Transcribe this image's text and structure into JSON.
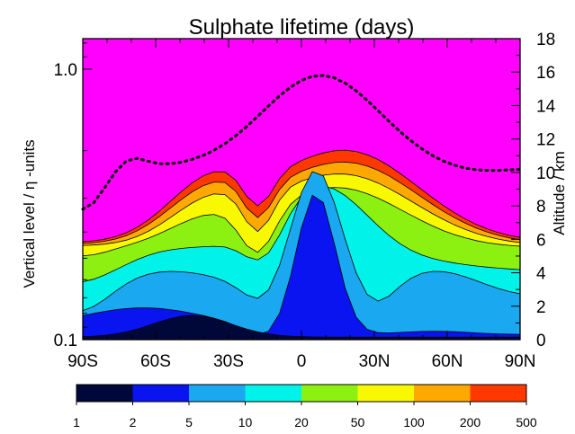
{
  "chart_data": {
    "type": "filled-contour",
    "title": "Sulphate lifetime (days)",
    "ylabel": "Vertical level / η -units",
    "y2label": "Altitude / km",
    "x_ticks": [
      "90S",
      "60S",
      "30S",
      "0",
      "30N",
      "60N",
      "90N"
    ],
    "x_values": [
      -90,
      -60,
      -30,
      0,
      30,
      60,
      90
    ],
    "xlim": [
      -90,
      90
    ],
    "y_ticks_left": [
      "0.1",
      "1.0"
    ],
    "ylim_left": [
      1.0,
      0.05
    ],
    "y_scale_left": "log",
    "y_ticks_right": [
      "0",
      "2",
      "4",
      "6",
      "8",
      "10",
      "12",
      "14",
      "16",
      "18"
    ],
    "ylim_right": [
      0,
      18
    ],
    "colorbar": {
      "levels": [
        "1",
        "2",
        "5",
        "10",
        "20",
        "50",
        "100",
        "200",
        "500"
      ],
      "colors": [
        "#00083a",
        "#0a14f0",
        "#1aa8f0",
        "#00f2e8",
        "#8cf010",
        "#f8f800",
        "#ffa800",
        "#ff3800"
      ]
    },
    "background_color": "#ff00ff",
    "tropopause_style": "dotted"
  },
  "render": {
    "bands": [
      {
        "color": "#ff3800",
        "lev": 500
      },
      {
        "color": "#ffa800",
        "lev": 200
      },
      {
        "color": "#f8f800",
        "lev": 100
      },
      {
        "color": "#8cf010",
        "lev": 50
      },
      {
        "color": "#00f2e8",
        "lev": 20
      },
      {
        "color": "#1aa8f0",
        "lev": 10
      },
      {
        "color": "#0a14f0",
        "lev": 5
      },
      {
        "color": "#00083a",
        "lev": 2
      }
    ]
  }
}
